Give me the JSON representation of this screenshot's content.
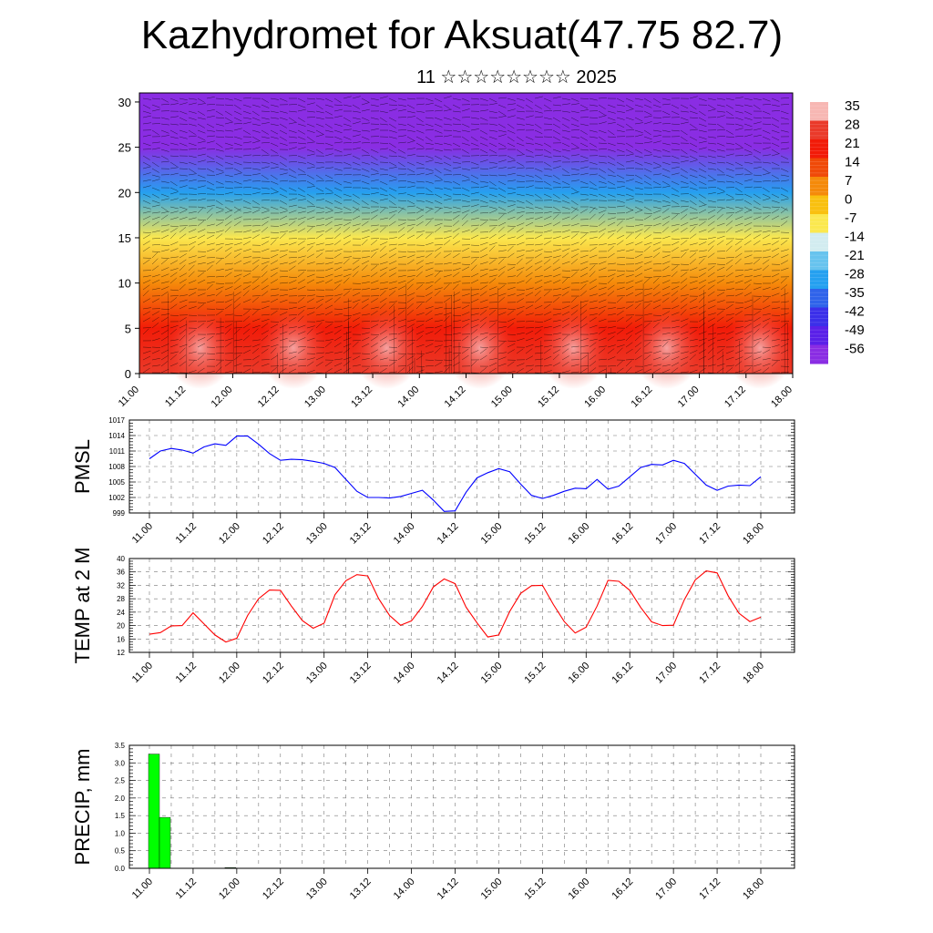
{
  "title": "Kazhydromet for Aksuat(47.75 82.7)",
  "subtitle": "11 ☆☆☆☆☆☆☆☆ 2025",
  "x_tick_labels": [
    "11.00",
    "11.12",
    "12.00",
    "12.12",
    "13.00",
    "13.12",
    "14.00",
    "14.12",
    "15.00",
    "15.12",
    "16.00",
    "16.12",
    "17.00",
    "17.12",
    "18.00"
  ],
  "chart_data": [
    {
      "type": "heatmap",
      "description_axis": "height",
      "x": [
        "11.00",
        "11.12",
        "12.00",
        "12.12",
        "13.00",
        "13.12",
        "14.00",
        "14.12",
        "15.00",
        "15.12",
        "16.00",
        "16.12",
        "17.00",
        "17.12",
        "18.00"
      ],
      "y_ticks": [
        0,
        5,
        10,
        15,
        20,
        25,
        30
      ],
      "ylim": [
        0,
        31
      ],
      "colorbar": {
        "labels": [
          "35",
          "28",
          "21",
          "14",
          "7",
          "0",
          "-7",
          "-14",
          "-21",
          "-28",
          "-35",
          "-42",
          "-49",
          "-56"
        ],
        "colors": [
          "#f7b7b3",
          "#ea3a2a",
          "#f21b08",
          "#f04a08",
          "#f58a0a",
          "#f9c010",
          "#fbe84f",
          "#d2ecf0",
          "#67c3ee",
          "#25a0f0",
          "#2f63ea",
          "#3b2fe9",
          "#5a20e8",
          "#8a2de3"
        ]
      },
      "profile": [
        {
          "level": 0,
          "value": 30
        },
        {
          "level": 5,
          "value": 24
        },
        {
          "level": 10,
          "value": 10
        },
        {
          "level": 15,
          "value": -8
        },
        {
          "level": 20,
          "value": -28
        },
        {
          "level": 25,
          "value": -55
        },
        {
          "level": 31,
          "value": -56
        }
      ],
      "grid": true
    },
    {
      "type": "line",
      "ylabel": "PMSL",
      "y_ticks": [
        999,
        1002,
        1005,
        1008,
        1011,
        1014,
        1017
      ],
      "ylim": [
        999,
        1017
      ],
      "x": [
        0,
        3,
        6,
        9,
        12,
        15,
        18,
        21,
        24,
        27,
        30,
        33,
        36,
        39,
        42,
        45,
        48,
        51,
        54,
        57,
        60,
        63,
        66,
        69,
        72,
        75,
        78,
        81,
        84,
        87,
        90,
        93,
        96,
        99,
        102,
        105,
        108,
        111,
        114,
        117,
        120,
        123,
        126,
        129,
        132,
        135,
        138,
        141,
        144,
        147,
        150,
        153,
        156,
        159,
        162,
        165,
        168
      ],
      "series": [
        {
          "color": "#0000ff",
          "values": [
            1009.5,
            1011,
            1011.5,
            1011.2,
            1010.6,
            1011.8,
            1012.4,
            1012.1,
            1013.9,
            1013.9,
            1012.3,
            1010.5,
            1009.2,
            1009.4,
            1009.3,
            1009,
            1008.6,
            1007.8,
            1005.5,
            1003.2,
            1002,
            1002,
            1001.9,
            1002.2,
            1002.8,
            1003.4,
            1001.5,
            999.3,
            999.4,
            1003,
            1005.8,
            1006.8,
            1007.6,
            1007,
            1004.6,
            1002.4,
            1001.8,
            1002.4,
            1003.2,
            1003.8,
            1003.7,
            1005.5,
            1003.6,
            1004.2,
            1006,
            1007.8,
            1008.4,
            1008.3,
            1009.2,
            1008.6,
            1006.5,
            1004.4,
            1003.4,
            1004.2,
            1004.4,
            1004.3,
            1006
          ]
        }
      ],
      "grid": true
    },
    {
      "type": "line",
      "ylabel": "TEMP at 2 M",
      "y_ticks": [
        12,
        16,
        20,
        24,
        28,
        32,
        36,
        40
      ],
      "ylim": [
        12,
        40
      ],
      "x": [
        0,
        3,
        6,
        9,
        12,
        15,
        18,
        21,
        24,
        27,
        30,
        33,
        36,
        39,
        42,
        45,
        48,
        51,
        54,
        57,
        60,
        63,
        66,
        69,
        72,
        75,
        78,
        81,
        84,
        87,
        90,
        93,
        96,
        99,
        102,
        105,
        108,
        111,
        114,
        117,
        120,
        123,
        126,
        129,
        132,
        135,
        138,
        141,
        144,
        147,
        150,
        153,
        156,
        159,
        162,
        165,
        168
      ],
      "series": [
        {
          "color": "#ff0000",
          "values": [
            17.4,
            17.9,
            19.9,
            20,
            23.8,
            20.5,
            17.2,
            15.1,
            16.2,
            23,
            28,
            30.6,
            30.5,
            25.8,
            21.5,
            19.2,
            20.7,
            29.2,
            33.4,
            35.2,
            34.8,
            28,
            23,
            20.1,
            21.4,
            25.7,
            31.5,
            33.9,
            32.5,
            25.5,
            20.8,
            16.6,
            17.2,
            24.2,
            29.6,
            31.9,
            32,
            26.3,
            21.2,
            17.8,
            19.5,
            25.8,
            33.5,
            33.2,
            30.5,
            25.4,
            21.1,
            20,
            20.1,
            27.7,
            33.6,
            36.3,
            35.7,
            28.9,
            23.7,
            21.2,
            22.5
          ]
        }
      ],
      "grid": true
    },
    {
      "type": "bar",
      "ylabel": "PRECIP, mm",
      "y_ticks": [
        0.0,
        0.5,
        1.0,
        1.5,
        2.0,
        2.5,
        3.0,
        3.5
      ],
      "ylim": [
        0,
        3.5
      ],
      "x": [
        0,
        3,
        6,
        9,
        12,
        15,
        18,
        21,
        24
      ],
      "values": [
        3.25,
        1.45,
        0,
        0,
        0,
        0,
        0,
        0.02,
        0
      ],
      "color": "#00ff00",
      "grid": true
    }
  ]
}
